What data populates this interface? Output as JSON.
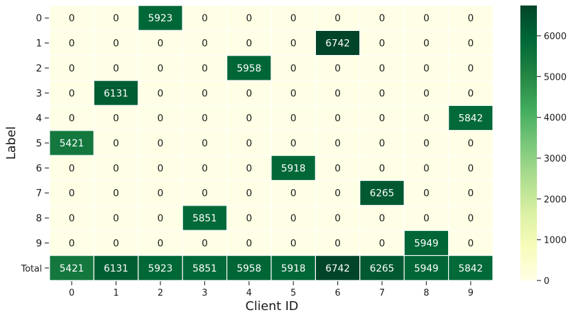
{
  "chart_data": {
    "type": "heatmap",
    "title": "",
    "xlabel": "Client ID",
    "ylabel": "Label",
    "x_categories": [
      "0",
      "1",
      "2",
      "3",
      "4",
      "5",
      "6",
      "7",
      "8",
      "9"
    ],
    "y_categories": [
      "0",
      "1",
      "2",
      "3",
      "4",
      "5",
      "6",
      "7",
      "8",
      "9",
      "Total"
    ],
    "values": [
      [
        0,
        0,
        5923,
        0,
        0,
        0,
        0,
        0,
        0,
        0
      ],
      [
        0,
        0,
        0,
        0,
        0,
        0,
        6742,
        0,
        0,
        0
      ],
      [
        0,
        0,
        0,
        0,
        5958,
        0,
        0,
        0,
        0,
        0
      ],
      [
        0,
        6131,
        0,
        0,
        0,
        0,
        0,
        0,
        0,
        0
      ],
      [
        0,
        0,
        0,
        0,
        0,
        0,
        0,
        0,
        0,
        5842
      ],
      [
        5421,
        0,
        0,
        0,
        0,
        0,
        0,
        0,
        0,
        0
      ],
      [
        0,
        0,
        0,
        0,
        0,
        5918,
        0,
        0,
        0,
        0
      ],
      [
        0,
        0,
        0,
        0,
        0,
        0,
        0,
        6265,
        0,
        0
      ],
      [
        0,
        0,
        0,
        5851,
        0,
        0,
        0,
        0,
        0,
        0
      ],
      [
        0,
        0,
        0,
        0,
        0,
        0,
        0,
        0,
        5949,
        0
      ],
      [
        5421,
        6131,
        5923,
        5851,
        5958,
        5918,
        6742,
        6265,
        5949,
        5842
      ]
    ],
    "colormap": "YlGn",
    "colorbar": {
      "range": [
        0,
        6742
      ],
      "ticks": [
        0,
        1000,
        2000,
        3000,
        4000,
        5000,
        6000
      ]
    },
    "annotated": true,
    "cell_border_color": "#ffffff"
  }
}
